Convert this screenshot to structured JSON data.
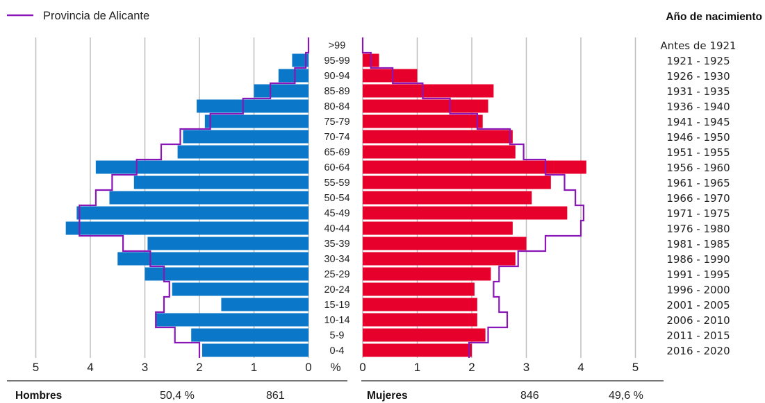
{
  "chart_data": {
    "type": "bar",
    "subtype": "population-pyramid",
    "categories": [
      "0-4",
      "5-9",
      "10-14",
      "15-19",
      "20-24",
      "25-29",
      "30-34",
      "35-39",
      "40-44",
      "45-49",
      "50-54",
      "55-59",
      "60-64",
      "65-69",
      "70-74",
      "75-79",
      "80-84",
      "85-89",
      "90-94",
      "95-99",
      ">99"
    ],
    "birth_years": [
      "2016 - 2020",
      "2011 - 2015",
      "2006 - 2010",
      "2001 - 2005",
      "1996 - 2000",
      "1991 - 1995",
      "1986 - 1990",
      "1981 - 1985",
      "1976 - 1980",
      "1971 - 1975",
      "1966 - 1970",
      "1961 - 1965",
      "1956 - 1960",
      "1951 - 1955",
      "1946 - 1950",
      "1941 - 1945",
      "1936 - 1940",
      "1931 - 1935",
      "1926 - 1930",
      "1921 - 1925",
      "Antes de 1921"
    ],
    "series": [
      {
        "name": "Hombres",
        "side": "left",
        "color": "#0a77c8",
        "values": [
          1.95,
          2.15,
          2.8,
          1.6,
          2.5,
          3.0,
          3.5,
          2.95,
          4.45,
          4.25,
          3.65,
          3.2,
          3.9,
          2.4,
          2.3,
          1.9,
          2.05,
          1.0,
          0.55,
          0.3,
          0.0
        ]
      },
      {
        "name": "Mujeres",
        "side": "right",
        "color": "#e8002d",
        "values": [
          2.0,
          2.25,
          2.1,
          2.1,
          2.05,
          2.35,
          2.8,
          3.0,
          2.75,
          3.75,
          3.1,
          3.45,
          4.1,
          2.8,
          2.75,
          2.2,
          2.3,
          2.4,
          1.0,
          0.3,
          0.0
        ]
      },
      {
        "name": "Provincia de Alicante",
        "color": "#8b16b8",
        "outline": true,
        "male": [
          2.0,
          2.45,
          2.8,
          2.65,
          2.55,
          2.65,
          2.9,
          3.4,
          4.2,
          4.2,
          3.9,
          3.6,
          3.15,
          2.7,
          2.35,
          1.8,
          1.2,
          0.7,
          0.25,
          0.05,
          0.0
        ],
        "female": [
          1.95,
          2.3,
          2.65,
          2.5,
          2.4,
          2.5,
          2.85,
          3.35,
          4.0,
          4.05,
          3.9,
          3.7,
          3.35,
          2.95,
          2.7,
          2.1,
          1.6,
          1.1,
          0.55,
          0.15,
          0.0
        ]
      }
    ],
    "xlim": [
      0,
      5
    ],
    "ticks": [
      "5",
      "4",
      "3",
      "2",
      "1",
      "0",
      "0",
      "1",
      "2",
      "3",
      "4",
      "5"
    ],
    "unit_label": "%",
    "right_title": "Año de nacimiento",
    "grid": true,
    "legend": "top-left"
  },
  "legend_label": "Provincia de Alicante",
  "right_title": "Año de nacimiento",
  "unit_label": "%",
  "footer": {
    "men_label": "Hombres",
    "men_pct": "50,4 %",
    "men_count": "861",
    "women_label": "Mujeres",
    "women_count": "846",
    "women_pct": "49,6 %"
  },
  "colors": {
    "men": "#0a77c8",
    "women": "#e8002d",
    "province": "#8b16b8",
    "grid": "#bdbdbd"
  }
}
